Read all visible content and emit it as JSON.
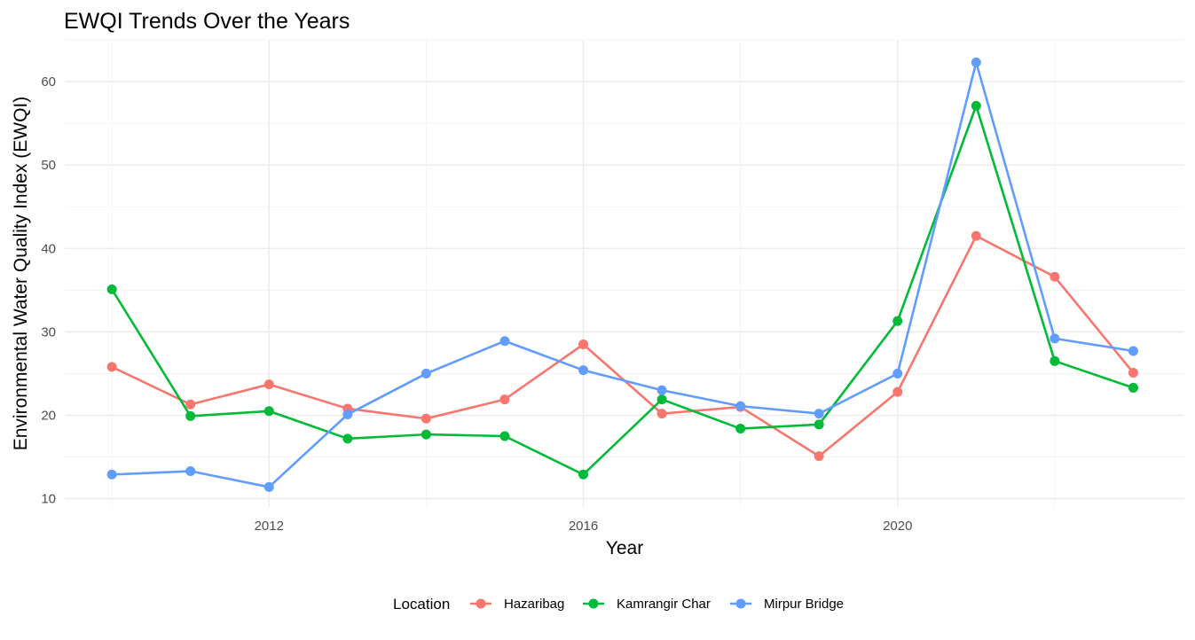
{
  "chart_data": {
    "type": "line",
    "title": "EWQI Trends Over the Years",
    "xlabel": "Year",
    "ylabel": "Environmental Water Quality Index (EWQI)",
    "x": [
      2010,
      2011,
      2012,
      2013,
      2014,
      2015,
      2016,
      2017,
      2018,
      2019,
      2020,
      2021,
      2022,
      2023
    ],
    "x_ticks": [
      2012,
      2016,
      2020
    ],
    "y_ticks": [
      10,
      20,
      30,
      40,
      50,
      60
    ],
    "xlim": [
      2009.4,
      2023.65
    ],
    "ylim": [
      9.0,
      65.0
    ],
    "grid": true,
    "legend_title": "Location",
    "legend_position": "bottom",
    "series": [
      {
        "name": "Hazaribag",
        "color": "#F8766D",
        "values": [
          25.8,
          21.3,
          23.7,
          20.8,
          19.6,
          21.9,
          28.5,
          20.2,
          21.0,
          15.1,
          22.8,
          41.5,
          36.6,
          25.1
        ]
      },
      {
        "name": "Kamrangir Char",
        "color": "#00BA38",
        "values": [
          35.1,
          19.9,
          20.5,
          17.2,
          17.7,
          17.5,
          12.9,
          21.9,
          18.4,
          18.9,
          31.3,
          57.1,
          26.5,
          23.3
        ]
      },
      {
        "name": "Mirpur Bridge",
        "color": "#619CFF",
        "values": [
          12.9,
          13.3,
          11.4,
          20.1,
          25.0,
          28.9,
          25.4,
          23.0,
          21.1,
          20.2,
          25.0,
          62.3,
          29.2,
          27.7
        ]
      }
    ]
  }
}
